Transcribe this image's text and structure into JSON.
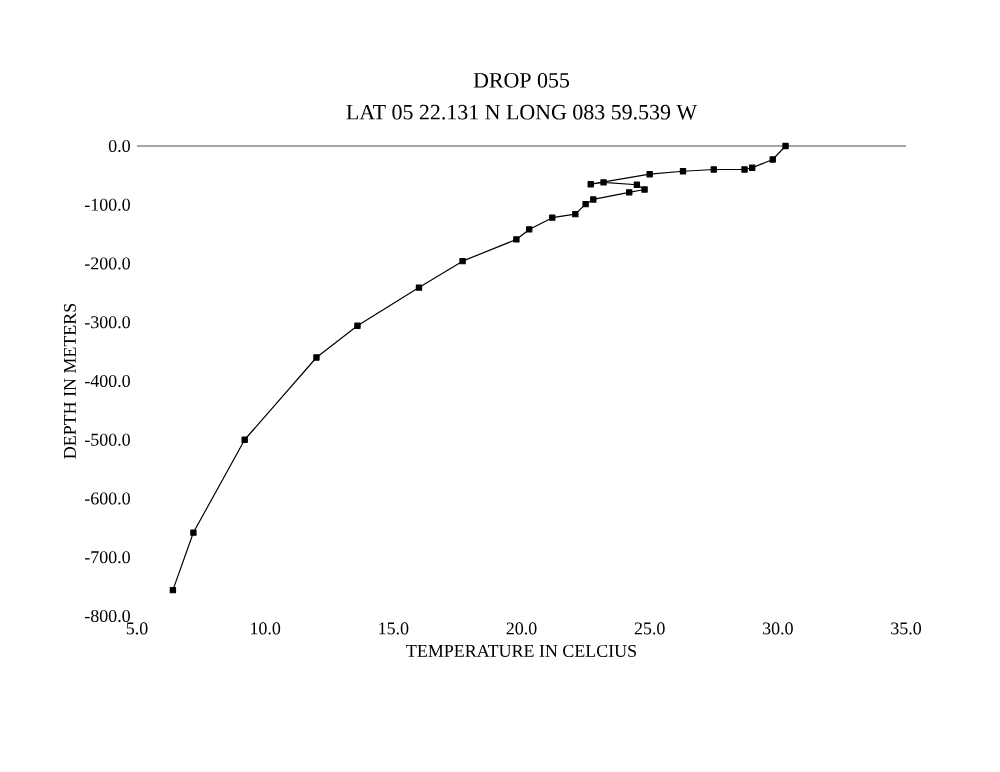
{
  "chart_data": {
    "type": "line",
    "title": "DROP 055",
    "subtitle": "LAT  05 22.131 N  LONG 083 59.539 W",
    "xlabel": "TEMPERATURE IN CELCIUS",
    "ylabel": "DEPTH IN METERS",
    "series": [
      {
        "color": "#000000",
        "x": [
          30.3,
          29.8,
          29.0,
          28.7,
          27.5,
          26.3,
          25.0,
          22.7,
          23.2,
          24.5,
          24.8,
          24.2,
          22.8,
          22.5,
          22.1,
          21.2,
          20.3,
          19.8,
          17.7,
          16.0,
          13.6,
          12.0,
          9.2,
          7.2,
          6.4
        ],
        "values": [
          0,
          -23,
          -37,
          -40,
          -40,
          -43,
          -48,
          -65,
          -62,
          -66,
          -74,
          -79,
          -91,
          -99,
          -116,
          -122,
          -142,
          -159,
          -196,
          -241,
          -306,
          -360,
          -500,
          -658,
          -756
        ]
      }
    ],
    "xlim": [
      5,
      35
    ],
    "ylim": [
      -800,
      0
    ],
    "xticks": [
      {
        "value": 5,
        "label": "5.0"
      },
      {
        "value": 10,
        "label": "10.0"
      },
      {
        "value": 15,
        "label": "15.0"
      },
      {
        "value": 20,
        "label": "20.0"
      },
      {
        "value": 25,
        "label": "25.0"
      },
      {
        "value": 30,
        "label": "30.0"
      },
      {
        "value": 35,
        "label": "35.0"
      }
    ],
    "yticks": [
      {
        "value": 0,
        "label": "0.0"
      },
      {
        "value": -100,
        "label": "-100.0"
      },
      {
        "value": -200,
        "label": "-200.0"
      },
      {
        "value": -300,
        "label": "-300.0"
      },
      {
        "value": -400,
        "label": "-400.0"
      },
      {
        "value": -500,
        "label": "-500.0"
      },
      {
        "value": -600,
        "label": "-600.0"
      },
      {
        "value": -700,
        "label": "-700.0"
      },
      {
        "value": -800,
        "label": "-800.0"
      }
    ],
    "grid": false,
    "marker": "square",
    "line_style": "solid"
  }
}
